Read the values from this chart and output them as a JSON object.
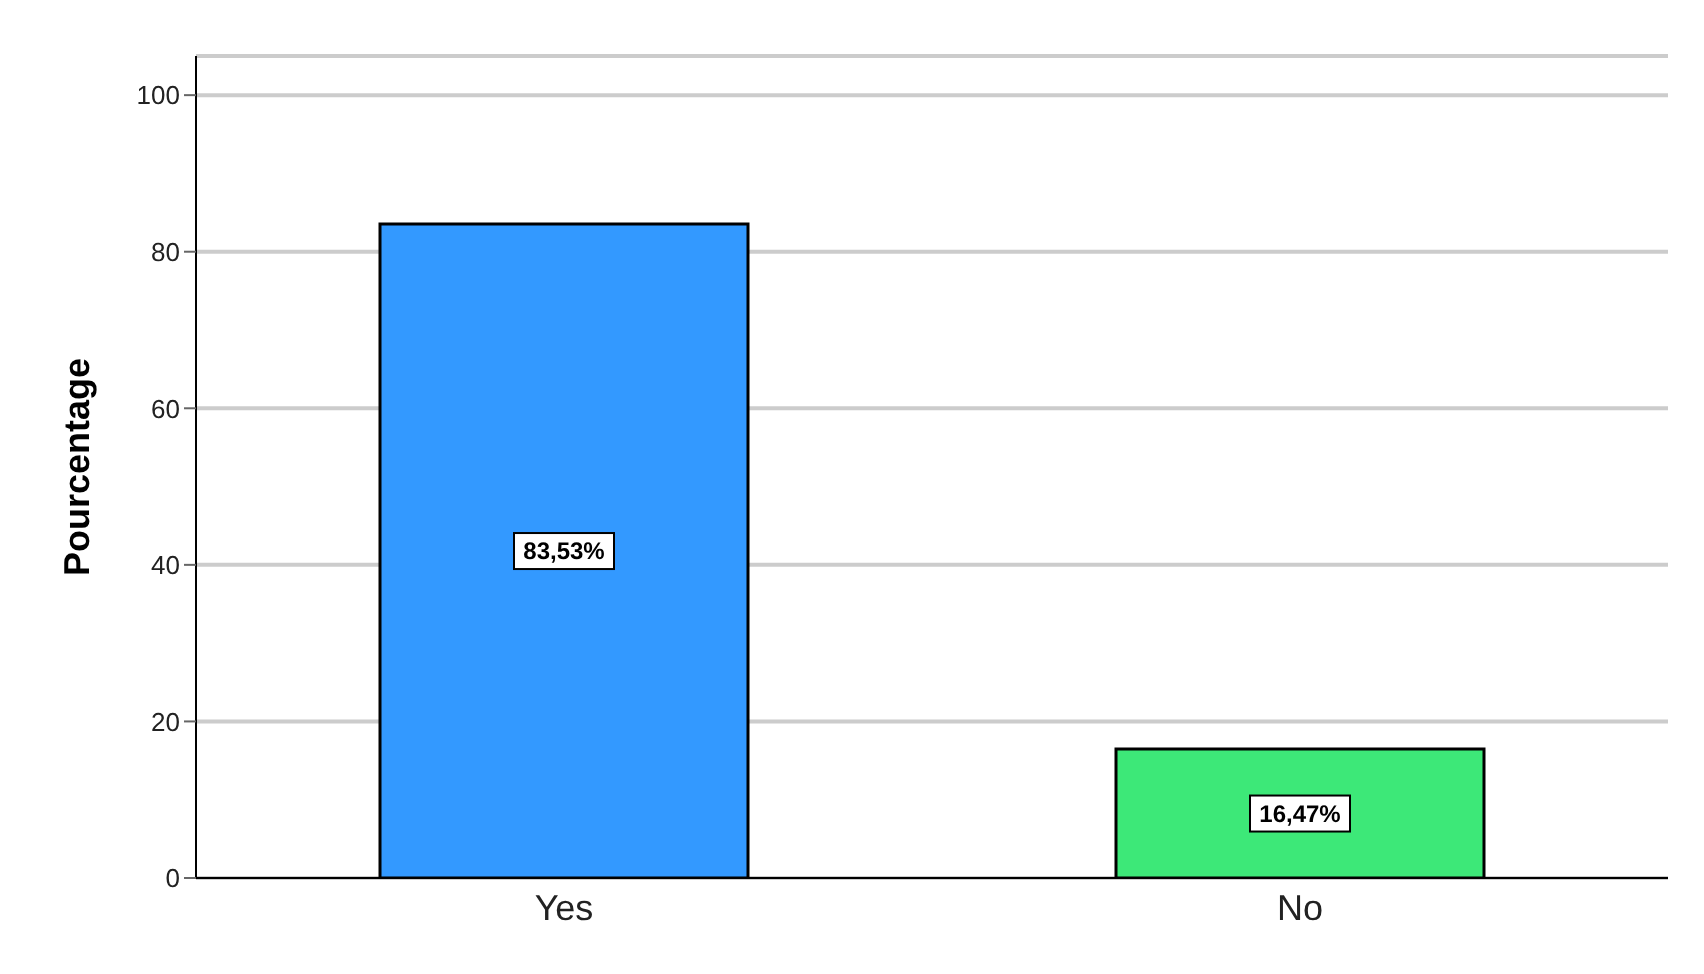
{
  "chart_data": {
    "type": "bar",
    "ylabel": "Pourcentage",
    "categories": [
      "Yes",
      "No"
    ],
    "values": [
      83.53,
      16.47
    ],
    "colors": [
      "#3399ff",
      "#3de878"
    ],
    "value_labels": [
      "83,53%",
      "16,47%"
    ],
    "ylim": [
      0,
      105
    ],
    "yticks": [
      0,
      20,
      40,
      60,
      80,
      100
    ],
    "grid": "y"
  }
}
